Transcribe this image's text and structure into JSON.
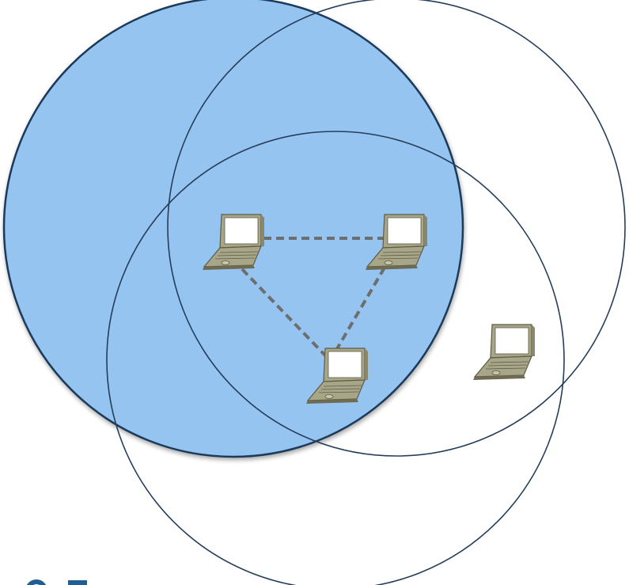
{
  "diagram": {
    "description_free": true,
    "colors": {
      "background": "#ffffff",
      "filled_circle": "#95c4f0",
      "filled_circle_stroke": "#1e3a5a",
      "circle_stroke": "#253d5a",
      "link": "#6e6e6e",
      "laptop_body": "#a8a688",
      "laptop_shadow": "#5e5b46",
      "laptop_screen": "#ffffff",
      "corner_glyph": "#1f5f96"
    },
    "circles": [
      {
        "id": "range-a",
        "filled": true
      },
      {
        "id": "range-b",
        "filled": false
      },
      {
        "id": "range-c",
        "filled": false
      }
    ],
    "nodes": [
      {
        "id": "laptop-1",
        "in_range": true
      },
      {
        "id": "laptop-2",
        "in_range": true
      },
      {
        "id": "laptop-3",
        "in_range": true
      },
      {
        "id": "laptop-4",
        "in_range": false
      }
    ],
    "links": [
      {
        "from": "laptop-1",
        "to": "laptop-2",
        "style": "dashed"
      },
      {
        "from": "laptop-1",
        "to": "laptop-3",
        "style": "dashed"
      },
      {
        "from": "laptop-2",
        "to": "laptop-3",
        "style": "dashed"
      }
    ]
  }
}
